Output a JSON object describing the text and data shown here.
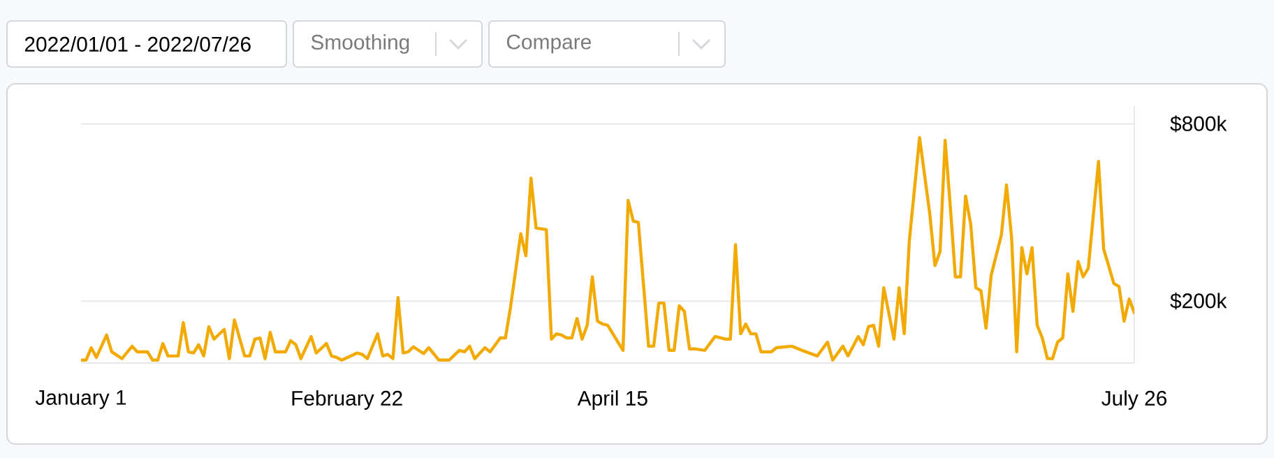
{
  "chart_data": {
    "type": "line",
    "annotations": [
      "2022/01/01 - 2022/07/26",
      "Smoothing",
      "Compare"
    ],
    "xlim": [
      "2022-01-01",
      "2022-07-26"
    ],
    "xticks": [
      {
        "value": "2022-01-01",
        "label": "January 1"
      },
      {
        "value": "2022-02-22",
        "label": "February 22"
      },
      {
        "value": "2022-04-15",
        "label": "April 15"
      },
      {
        "value": "2022-07-26",
        "label": "July 26"
      }
    ],
    "ylim": [
      -10000,
      860000
    ],
    "yticks": [
      {
        "value": 200000,
        "label": "$200k"
      },
      {
        "value": 800000,
        "label": "$800k"
      }
    ],
    "grid": "y",
    "x": [
      "2022-01-01",
      "2022-01-02",
      "2022-01-03",
      "2022-01-04",
      "2022-01-06",
      "2022-01-07",
      "2022-01-09",
      "2022-01-11",
      "2022-01-12",
      "2022-01-14",
      "2022-01-15",
      "2022-01-16",
      "2022-01-17",
      "2022-01-18",
      "2022-01-20",
      "2022-01-21",
      "2022-01-22",
      "2022-01-23",
      "2022-01-24",
      "2022-01-25",
      "2022-01-26",
      "2022-01-27",
      "2022-01-29",
      "2022-01-30",
      "2022-01-31",
      "2022-02-02",
      "2022-02-03",
      "2022-02-04",
      "2022-02-05",
      "2022-02-06",
      "2022-02-07",
      "2022-02-08",
      "2022-02-10",
      "2022-02-11",
      "2022-02-12",
      "2022-02-13",
      "2022-02-15",
      "2022-02-16",
      "2022-02-18",
      "2022-02-19",
      "2022-02-20",
      "2022-02-21",
      "2022-02-24",
      "2022-02-25",
      "2022-02-26",
      "2022-02-28",
      "2022-03-01",
      "2022-03-02",
      "2022-03-03",
      "2022-03-04",
      "2022-03-05",
      "2022-03-06",
      "2022-03-07",
      "2022-03-09",
      "2022-03-10",
      "2022-03-12",
      "2022-03-14",
      "2022-03-16",
      "2022-03-17",
      "2022-03-18",
      "2022-03-19",
      "2022-03-21",
      "2022-03-22",
      "2022-03-24",
      "2022-03-25",
      "2022-03-26",
      "2022-03-28",
      "2022-03-29",
      "2022-03-30",
      "2022-03-31",
      "2022-04-02",
      "2022-04-03",
      "2022-04-04",
      "2022-04-05",
      "2022-04-06",
      "2022-04-07",
      "2022-04-08",
      "2022-04-09",
      "2022-04-10",
      "2022-04-11",
      "2022-04-12",
      "2022-04-13",
      "2022-04-14",
      "2022-04-17",
      "2022-04-18",
      "2022-04-19",
      "2022-04-20",
      "2022-04-22",
      "2022-04-23",
      "2022-04-24",
      "2022-04-25",
      "2022-04-26",
      "2022-04-27",
      "2022-04-28",
      "2022-04-29",
      "2022-04-30",
      "2022-05-01",
      "2022-05-03",
      "2022-05-05",
      "2022-05-07",
      "2022-05-08",
      "2022-05-09",
      "2022-05-10",
      "2022-05-11",
      "2022-05-12",
      "2022-05-13",
      "2022-05-14",
      "2022-05-16",
      "2022-05-17",
      "2022-05-20",
      "2022-05-22",
      "2022-05-25",
      "2022-05-27",
      "2022-05-28",
      "2022-05-30",
      "2022-05-31",
      "2022-06-02",
      "2022-06-03",
      "2022-06-04",
      "2022-06-05",
      "2022-06-06",
      "2022-06-07",
      "2022-06-09",
      "2022-06-10",
      "2022-06-11",
      "2022-06-12",
      "2022-06-14",
      "2022-06-16",
      "2022-06-17",
      "2022-06-18",
      "2022-06-19",
      "2022-06-20",
      "2022-06-21",
      "2022-06-22",
      "2022-06-23",
      "2022-06-24",
      "2022-06-25",
      "2022-06-26",
      "2022-06-27",
      "2022-06-28",
      "2022-06-30",
      "2022-07-01",
      "2022-07-02",
      "2022-07-03",
      "2022-07-04",
      "2022-07-05",
      "2022-07-06",
      "2022-07-07",
      "2022-07-08",
      "2022-07-09",
      "2022-07-10",
      "2022-07-11",
      "2022-07-12",
      "2022-07-13",
      "2022-07-14",
      "2022-07-15",
      "2022-07-16",
      "2022-07-17",
      "2022-07-18",
      "2022-07-19",
      "2022-07-20",
      "2022-07-22",
      "2022-07-23",
      "2022-07-24",
      "2022-07-25",
      "2022-07-26"
    ],
    "series": [
      {
        "color": "#f2a900",
        "values": [
          0,
          0,
          42000,
          9000,
          85000,
          28000,
          5000,
          47000,
          28000,
          28000,
          0,
          0,
          56000,
          14000,
          14000,
          127000,
          28000,
          24000,
          52000,
          14000,
          113000,
          71000,
          104000,
          5000,
          136000,
          14000,
          14000,
          71000,
          75000,
          5000,
          94000,
          28000,
          28000,
          66000,
          52000,
          5000,
          80000,
          24000,
          56000,
          14000,
          9000,
          0,
          24000,
          19000,
          5000,
          89000,
          14000,
          19000,
          5000,
          212000,
          24000,
          28000,
          45000,
          22000,
          42000,
          0,
          0,
          33000,
          28000,
          47000,
          5000,
          42000,
          28000,
          75000,
          75000,
          179000,
          428000,
          353000,
          616000,
          447000,
          442000,
          71000,
          89000,
          85000,
          75000,
          75000,
          141000,
          71000,
          118000,
          282000,
          132000,
          122000,
          118000,
          33000,
          541000,
          471000,
          466000,
          47000,
          47000,
          193000,
          193000,
          33000,
          33000,
          184000,
          165000,
          38000,
          38000,
          33000,
          80000,
          71000,
          71000,
          391000,
          89000,
          122000,
          89000,
          89000,
          28000,
          28000,
          42000,
          47000,
          33000,
          14000,
          61000,
          0,
          47000,
          14000,
          80000,
          52000,
          113000,
          118000,
          47000,
          245000,
          71000,
          245000,
          89000,
          405000,
          753000,
          494000,
          320000,
          367000,
          744000,
          522000,
          282000,
          282000,
          555000,
          461000,
          245000,
          235000,
          108000,
          287000,
          424000,
          593000,
          414000,
          28000,
          381000,
          292000,
          381000,
          118000,
          75000,
          5000,
          5000,
          61000,
          75000,
          292000,
          165000,
          334000,
          282000,
          311000,
          494000,
          673000,
          376000,
          259000,
          249000,
          132000,
          207000,
          160000
        ]
      }
    ]
  }
}
